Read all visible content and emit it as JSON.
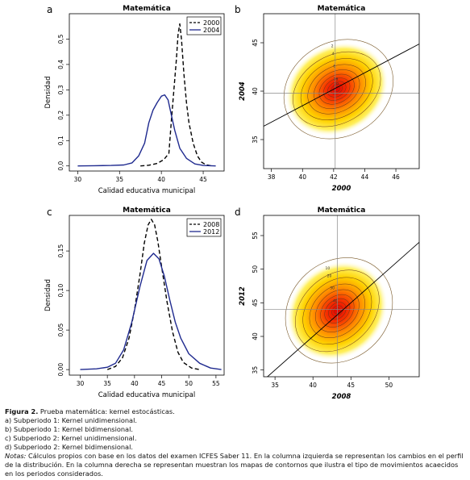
{
  "chart_data": [
    {
      "panel_letter": "a",
      "type": "line",
      "title": "Matemática",
      "xlabel": "Calidad educativa municipal",
      "ylabel": "Densidad",
      "xlim": [
        29,
        47.5
      ],
      "ylim": [
        -0.02,
        0.6
      ],
      "xticks": [
        30,
        35,
        40,
        45
      ],
      "yticks": [
        0.0,
        0.1,
        0.2,
        0.3,
        0.4,
        0.5
      ],
      "ytick_labels": [
        "0,0",
        "0,1",
        "0,2",
        "0,3",
        "0,4",
        "0,5"
      ],
      "legend_position": "top-right",
      "series": [
        {
          "name": "2000",
          "color": "#000000",
          "dash": "dashed",
          "x": [
            37.5,
            38.5,
            39.5,
            40.3,
            40.9,
            41.2,
            41.5,
            41.8,
            42.0,
            42.2,
            42.4,
            42.7,
            43.0,
            43.3,
            43.8,
            44.3,
            44.8,
            45.3,
            46.0
          ],
          "y": [
            0.0,
            0.003,
            0.01,
            0.025,
            0.05,
            0.18,
            0.3,
            0.42,
            0.52,
            0.56,
            0.5,
            0.36,
            0.25,
            0.17,
            0.09,
            0.04,
            0.015,
            0.005,
            0.0
          ]
        },
        {
          "name": "2004",
          "color": "#1f2a8f",
          "dash": "solid",
          "x": [
            30,
            32,
            34,
            35.5,
            36.5,
            37.3,
            38,
            38.5,
            39,
            39.5,
            40,
            40.4,
            40.8,
            41.2,
            41.6,
            42.2,
            43,
            44,
            45,
            46.5
          ],
          "y": [
            0.0,
            0.001,
            0.002,
            0.004,
            0.012,
            0.04,
            0.09,
            0.17,
            0.22,
            0.25,
            0.275,
            0.28,
            0.26,
            0.2,
            0.14,
            0.07,
            0.03,
            0.008,
            0.002,
            0.0
          ]
        }
      ]
    },
    {
      "panel_letter": "b",
      "type": "contour",
      "title": "Matemática",
      "xlabel": "2000",
      "ylabel": "2004",
      "xlim": [
        37.5,
        47.5
      ],
      "ylim": [
        32,
        48
      ],
      "xticks": [
        38,
        40,
        42,
        44,
        46
      ],
      "yticks": [
        35,
        40,
        45
      ],
      "center": [
        42.2,
        40.2
      ],
      "hline": 39.8,
      "vline": 42.1,
      "fit_line": {
        "slope": 0.85,
        "intercept": 4.5
      },
      "contour_labels": [
        "2",
        "4",
        "6",
        "18",
        "20"
      ]
    },
    {
      "panel_letter": "c",
      "type": "line",
      "title": "Matemática",
      "xlabel": "Calidad educativa municipal",
      "ylabel": "Densidad",
      "xlim": [
        28,
        56.5
      ],
      "ylim": [
        -0.007,
        0.195
      ],
      "xticks": [
        30,
        35,
        40,
        45,
        50,
        55
      ],
      "yticks": [
        0.0,
        0.05,
        0.1,
        0.15
      ],
      "ytick_labels": [
        "0,00",
        "0,05",
        "0,10",
        "0,15"
      ],
      "legend_position": "top-right",
      "series": [
        {
          "name": "2008",
          "color": "#000000",
          "dash": "dashed",
          "x": [
            35,
            36.5,
            37.8,
            39,
            40,
            41,
            41.8,
            42.5,
            43.1,
            43.7,
            44.3,
            45,
            46,
            47,
            48,
            49,
            50.5,
            52
          ],
          "y": [
            0.0,
            0.004,
            0.015,
            0.04,
            0.075,
            0.12,
            0.16,
            0.183,
            0.19,
            0.183,
            0.162,
            0.13,
            0.085,
            0.048,
            0.022,
            0.009,
            0.002,
            0.0
          ]
        },
        {
          "name": "2012",
          "color": "#1f2a8f",
          "dash": "solid",
          "x": [
            30,
            33,
            35,
            36.5,
            38,
            39.5,
            41,
            42.3,
            43.5,
            44.5,
            45.5,
            46.5,
            47.5,
            48.5,
            50,
            52,
            54,
            56
          ],
          "y": [
            0.0,
            0.001,
            0.003,
            0.008,
            0.025,
            0.06,
            0.105,
            0.138,
            0.147,
            0.14,
            0.118,
            0.088,
            0.06,
            0.04,
            0.02,
            0.008,
            0.002,
            0.0
          ]
        }
      ]
    },
    {
      "panel_letter": "d",
      "type": "contour",
      "title": "Matemática",
      "xlabel": "2008",
      "ylabel": "2012",
      "xlim": [
        33.5,
        54
      ],
      "ylim": [
        34,
        58
      ],
      "xticks": [
        35,
        40,
        45,
        50
      ],
      "yticks": [
        35,
        40,
        45,
        50,
        55
      ],
      "center": [
        43.2,
        43.8
      ],
      "hline": 44.0,
      "vline": 43.2,
      "fit_line": {
        "slope": 1.0,
        "intercept": 0.0
      },
      "contour_labels": [
        "10",
        "20",
        "30",
        "40"
      ]
    }
  ],
  "caption": {
    "title_bold": "Figura 2.",
    "title_text": " Prueba matemática: kernel estocásticas.",
    "items": [
      "a) Subperiodo 1: Kernel unidimensional.",
      "b) Subperiodo 1: Kernel bidimensional.",
      "c) Subperiodo 2: Kernel unidimensional.",
      "d) Subperiodo 2: Kernel bidimensional."
    ],
    "notes_label": "Notas:",
    "notes_text": " Cálculos propios con base en los datos del examen ICFES Saber 11. En la columna izquierda se representan los cambios en el perfil de la distribución. En la columna derecha se representan muestran los mapas de contornos que ilustra el tipo de movimientos acaecidos en los periodos considerados."
  }
}
